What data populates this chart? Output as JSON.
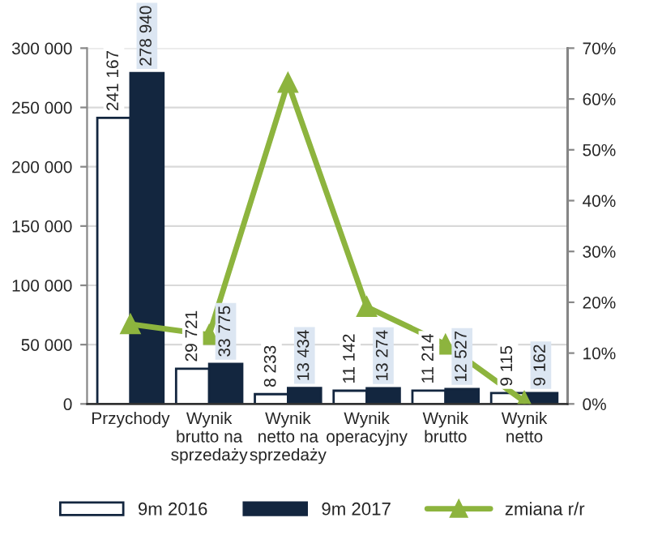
{
  "chart_data": {
    "type": "bar",
    "categories": [
      "Przychody",
      "Wynik\nbrutto na\nsprzedaży",
      "Wynik\nnetto na\nsprzedaży",
      "Wynik\noperacyjny",
      "Wynik\nbrutto",
      "Wynik\nnetto"
    ],
    "series": [
      {
        "name": "9m 2016",
        "color": "#ffffff",
        "values": [
          241167,
          29721,
          8233,
          11142,
          11214,
          9115
        ],
        "value_labels": [
          "241 167",
          "29 721",
          "8 233",
          "11 142",
          "11 214",
          "9 115"
        ]
      },
      {
        "name": "9m 2017",
        "color": "#13263f",
        "values": [
          278940,
          33775,
          13434,
          13274,
          12527,
          9162
        ],
        "value_labels": [
          "278 940",
          "33 775",
          "13 434",
          "13 274",
          "12 527",
          "9 162"
        ]
      },
      {
        "name": "zmiana r/r",
        "type": "line",
        "axis": "y2",
        "color": "#8db43e",
        "marker": "triangle",
        "values": [
          15.7,
          13.6,
          63.2,
          19.1,
          11.7,
          0.5
        ]
      }
    ],
    "ylim": [
      0,
      300000
    ],
    "yticks": [
      {
        "value": 0,
        "label": "0"
      },
      {
        "value": 50000,
        "label": "50 000"
      },
      {
        "value": 100000,
        "label": "100 000"
      },
      {
        "value": 150000,
        "label": "150 000"
      },
      {
        "value": 200000,
        "label": "200 000"
      },
      {
        "value": 250000,
        "label": "250 000"
      },
      {
        "value": 300000,
        "label": "300 000"
      }
    ],
    "y2lim": [
      0,
      70
    ],
    "y2ticks": [
      {
        "value": 0,
        "label": "0%"
      },
      {
        "value": 10,
        "label": "10%"
      },
      {
        "value": 20,
        "label": "20%"
      },
      {
        "value": 30,
        "label": "30%"
      },
      {
        "value": 40,
        "label": "40%"
      },
      {
        "value": 50,
        "label": "50%"
      },
      {
        "value": 60,
        "label": "60%"
      },
      {
        "value": 70,
        "label": "70%"
      }
    ],
    "grid": "y",
    "legend": "bottom"
  }
}
